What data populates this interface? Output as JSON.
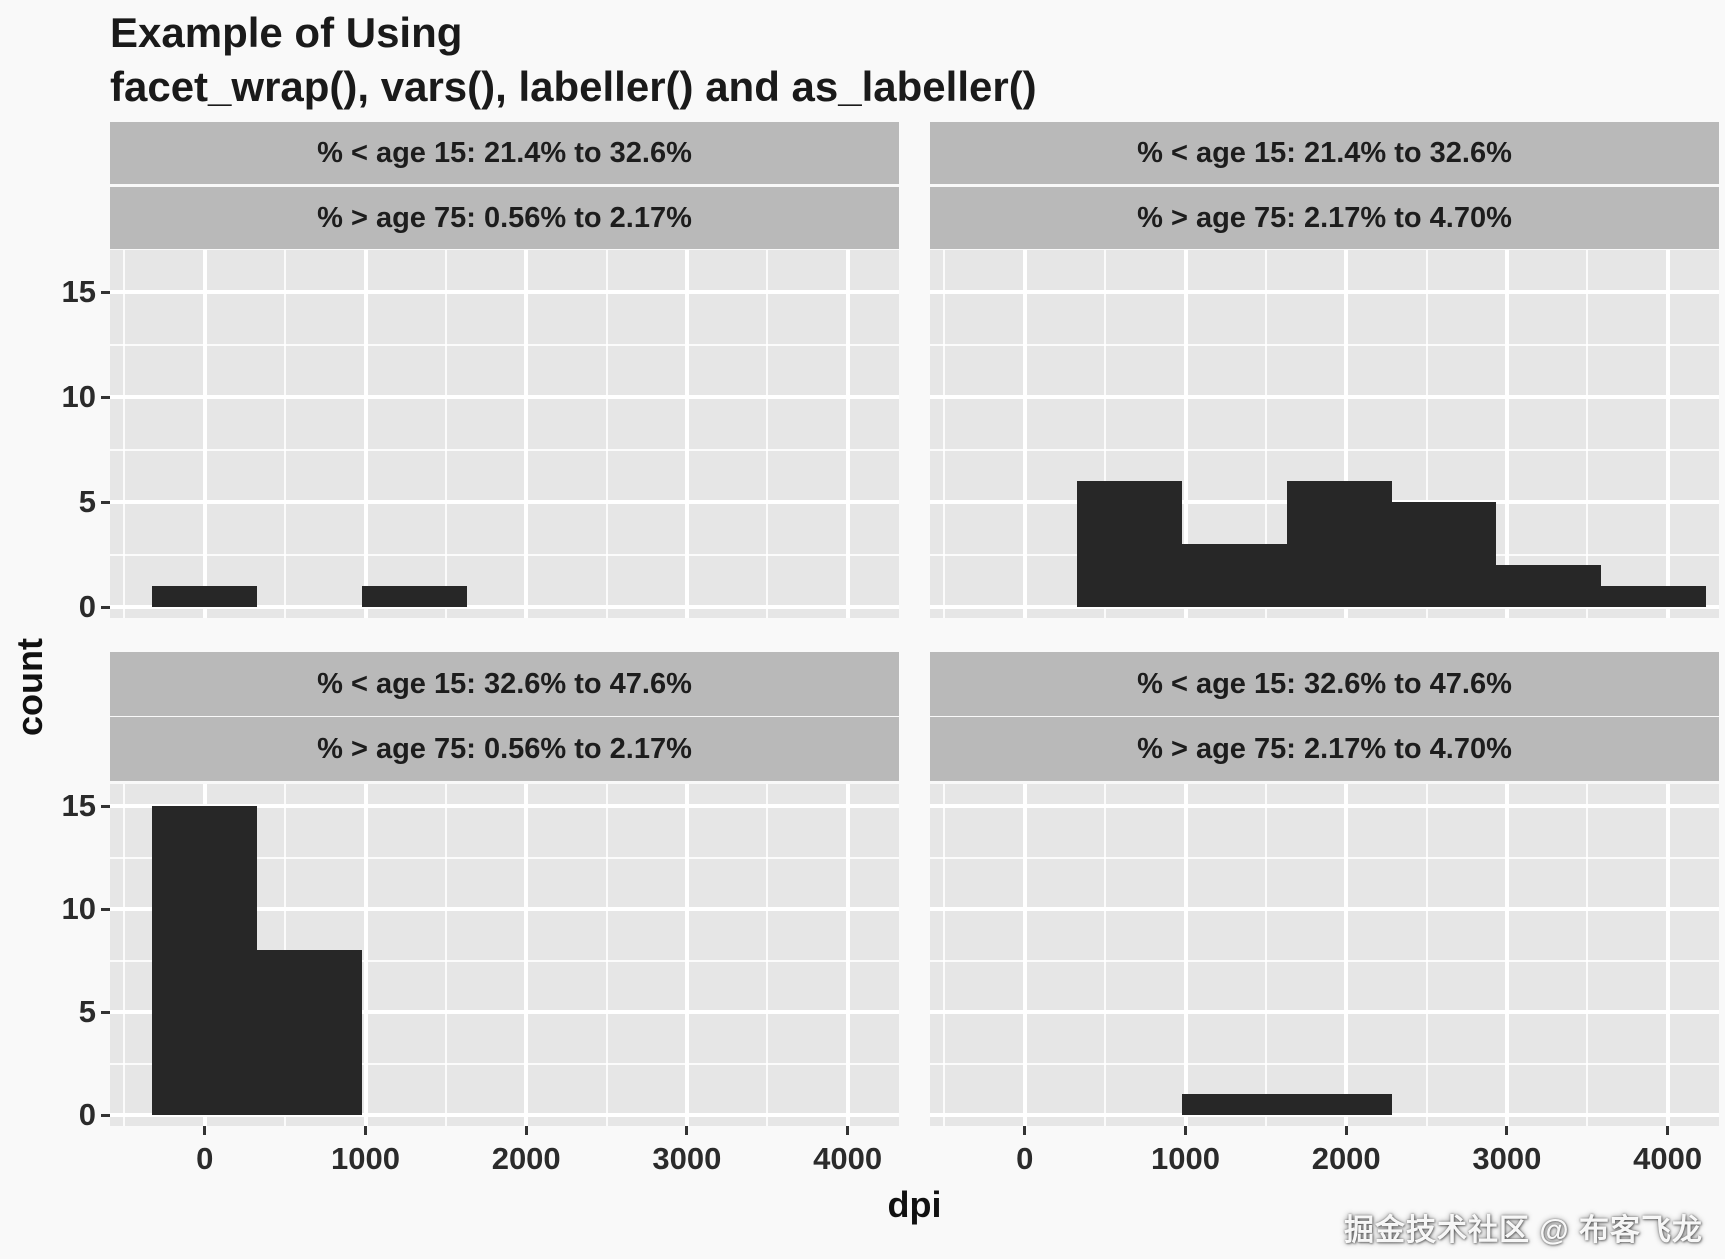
{
  "page": {
    "watermark": "掘金技术社区 @ 布客飞龙"
  },
  "chart_data": {
    "type": "bar",
    "subtype": "faceted-histogram",
    "title_lines": [
      "Example of Using",
      "facet_wrap(), vars(), labeller() and as_labeller()"
    ],
    "xlabel": "dpi",
    "ylabel": "count",
    "x_ticks": [
      0,
      1000,
      2000,
      3000,
      4000
    ],
    "y_ticks": [
      0,
      5,
      10,
      15
    ],
    "x_minor": [
      -500,
      500,
      1500,
      2500,
      3500
    ],
    "y_minor": [
      2.5,
      7.5,
      12.5
    ],
    "xlim": [
      -590,
      4320
    ],
    "ylim": [
      0,
      17
    ],
    "grid": "on",
    "legend": "none",
    "bin_edges": [
      -326,
      326,
      978,
      1630,
      2282,
      2934,
      3586,
      4238
    ],
    "facets": [
      {
        "row": 0,
        "col": 0,
        "strip1": "% < age 15: 21.4% to 32.6%",
        "strip2": "% > age 75: 0.56% to 2.17%",
        "counts": [
          1,
          0,
          1,
          0,
          0,
          0,
          0
        ]
      },
      {
        "row": 0,
        "col": 1,
        "strip1": "% < age 15: 21.4% to 32.6%",
        "strip2": "% > age 75: 2.17% to 4.70%",
        "counts": [
          0,
          6,
          3,
          6,
          5,
          2,
          1
        ]
      },
      {
        "row": 1,
        "col": 0,
        "strip1": "% < age 15: 32.6% to 47.6%",
        "strip2": "% > age 75: 0.56% to 2.17%",
        "counts": [
          15,
          8,
          0,
          0,
          0,
          0,
          0
        ]
      },
      {
        "row": 1,
        "col": 1,
        "strip1": "% < age 15: 32.6% to 47.6%",
        "strip2": "% > age 75: 2.17% to 4.70%",
        "counts": [
          0,
          0,
          1,
          1,
          0,
          0,
          0
        ]
      }
    ],
    "colors": {
      "bar": "#272727",
      "panel_bg": "#e6e6e6",
      "strip_bg": "#b9b9b9",
      "grid_major": "#ffffff",
      "grid_minor": "rgba(255,255,255,0.82)",
      "axis_text": "#2b2b2b",
      "title_text": "#1a1a1a"
    }
  }
}
